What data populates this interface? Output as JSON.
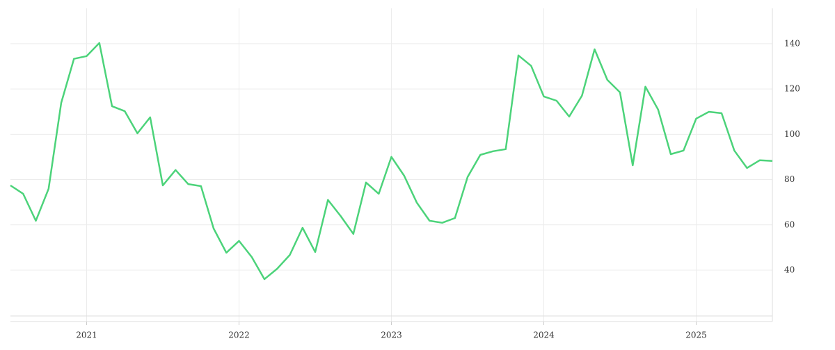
{
  "chart_data": {
    "type": "line",
    "x": [
      "2020-07",
      "2020-08",
      "2020-09",
      "2020-10",
      "2020-11",
      "2020-12",
      "2021-01",
      "2021-02",
      "2021-03",
      "2021-04",
      "2021-05",
      "2021-06",
      "2021-07",
      "2021-08",
      "2021-09",
      "2021-10",
      "2021-11",
      "2021-12",
      "2022-01",
      "2022-02",
      "2022-03",
      "2022-04",
      "2022-05",
      "2022-06",
      "2022-07",
      "2022-08",
      "2022-09",
      "2022-10",
      "2022-11",
      "2022-12",
      "2023-01",
      "2023-02",
      "2023-03",
      "2023-04",
      "2023-05",
      "2023-06",
      "2023-07",
      "2023-08",
      "2023-09",
      "2023-10",
      "2023-11",
      "2023-12",
      "2024-01",
      "2024-02",
      "2024-03",
      "2024-04",
      "2024-05",
      "2024-06",
      "2024-07",
      "2024-08",
      "2024-09",
      "2024-10",
      "2024-11",
      "2024-12",
      "2025-01",
      "2025-02",
      "2025-03",
      "2025-04",
      "2025-05",
      "2025-06",
      "2025-07"
    ],
    "series": [
      {
        "color": "#4cd37a",
        "values": [
          77.4,
          73.7,
          61.8,
          75.9,
          113.9,
          133.3,
          134.5,
          140.3,
          112.4,
          110.2,
          100.4,
          107.5,
          77.4,
          84.2,
          78.0,
          77.1,
          58.4,
          47.7,
          52.9,
          45.8,
          36.0,
          40.6,
          46.7,
          58.7,
          48.0,
          71.0,
          63.9,
          56.0,
          78.7,
          73.7,
          90.0,
          81.7,
          69.8,
          61.8,
          60.9,
          63.0,
          81.1,
          90.9,
          92.5,
          93.4,
          134.8,
          130.2,
          116.7,
          114.8,
          107.8,
          117.0,
          137.5,
          124.0,
          118.5,
          86.3,
          121.0,
          110.9,
          91.2,
          92.8,
          106.9,
          109.9,
          109.3,
          92.8,
          85.1,
          88.5,
          88.2
        ]
      }
    ],
    "xlim": [
      "2020-07",
      "2025-07"
    ],
    "xticks": [
      {
        "value": "2021-01",
        "label": "2021"
      },
      {
        "value": "2022-01",
        "label": "2022"
      },
      {
        "value": "2023-01",
        "label": "2023"
      },
      {
        "value": "2024-01",
        "label": "2024"
      },
      {
        "value": "2025-01",
        "label": "2025"
      }
    ],
    "ylim": [
      17.3,
      155.6
    ],
    "yticks": [
      40,
      60,
      80,
      100,
      120,
      140
    ],
    "grid": true
  }
}
